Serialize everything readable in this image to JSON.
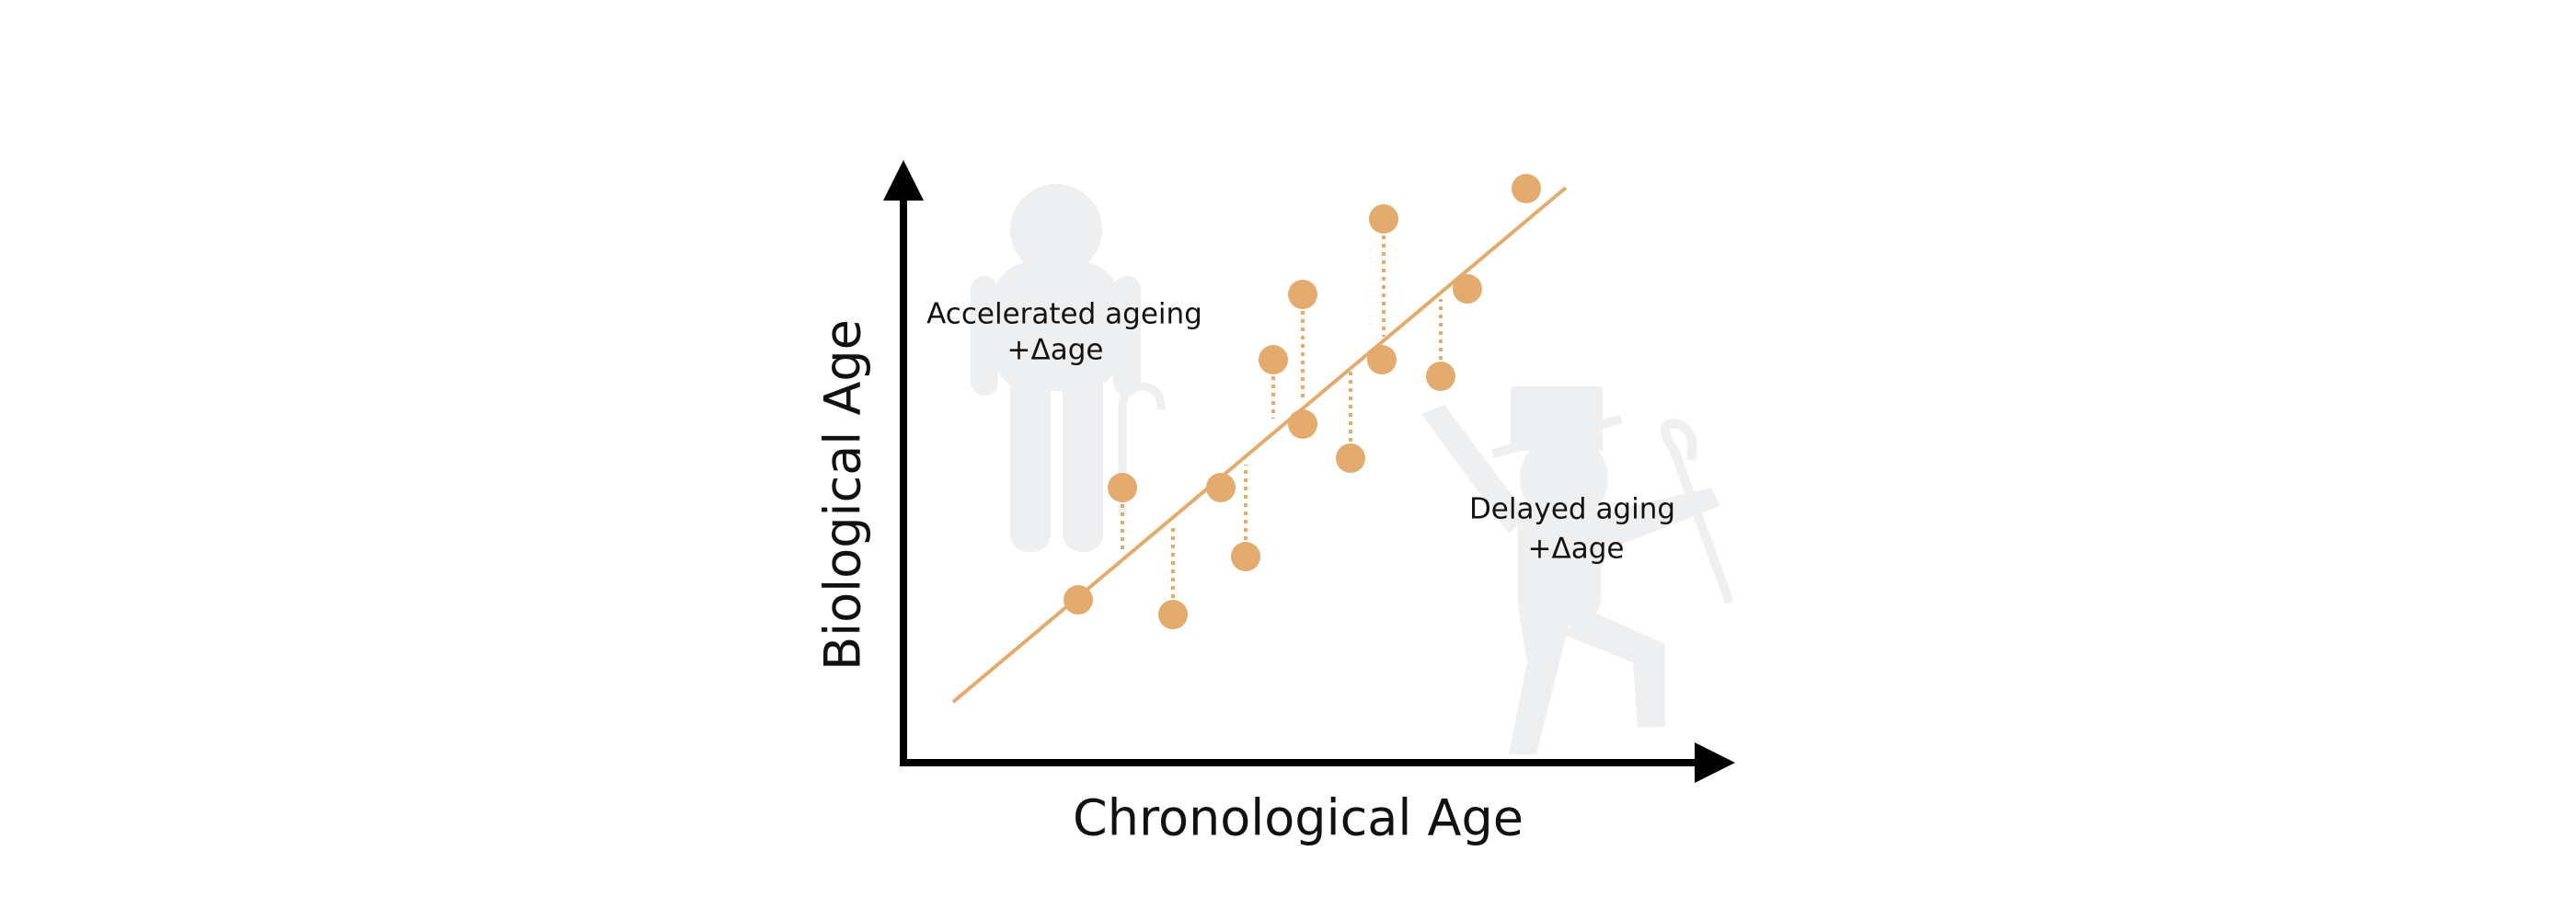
{
  "x_axis_label": "Chronological Age",
  "y_axis_label": "Biological Age",
  "annotations": {
    "accelerated": {
      "title": "Accelerated ageing",
      "delta": "+Δage"
    },
    "delayed": {
      "title": "Delayed aging",
      "delta": "+Δage"
    }
  }
}
